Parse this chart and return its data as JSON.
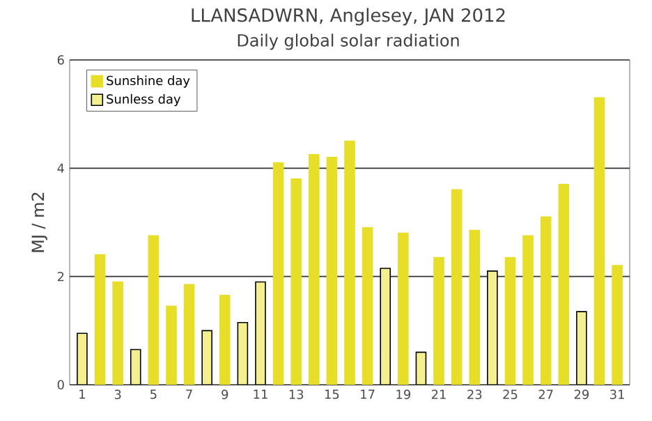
{
  "chart_data": {
    "type": "bar",
    "title": "LLANSADWRN, Anglesey, JAN 2012",
    "subtitle": "Daily global solar radiation",
    "ylabel": "MJ / m2",
    "categories": [
      "1",
      null,
      "3",
      null,
      "5",
      null,
      "7",
      null,
      "9",
      null,
      "11",
      null,
      "13",
      null,
      "15",
      null,
      "17",
      null,
      "19",
      null,
      "21",
      null,
      "23",
      null,
      "25",
      null,
      "27",
      null,
      "29",
      null,
      "31"
    ],
    "series": [
      {
        "name": "Sunshine day",
        "color": "#e6de28",
        "values": [
          null,
          2.4,
          1.9,
          null,
          2.75,
          1.45,
          1.85,
          null,
          1.65,
          null,
          null,
          4.1,
          3.8,
          4.25,
          4.2,
          4.5,
          2.9,
          null,
          2.8,
          null,
          2.35,
          3.6,
          2.85,
          null,
          2.35,
          2.75,
          3.1,
          3.7,
          null,
          5.3,
          2.2
        ]
      },
      {
        "name": "Sunless day",
        "color": "#f4f090",
        "values": [
          0.95,
          null,
          null,
          0.65,
          null,
          null,
          null,
          1.0,
          null,
          1.15,
          1.9,
          null,
          null,
          null,
          null,
          null,
          null,
          2.15,
          null,
          0.6,
          null,
          null,
          null,
          2.1,
          null,
          null,
          null,
          null,
          1.35,
          null,
          null
        ]
      }
    ],
    "stacked": true,
    "ylim": [
      0,
      6
    ],
    "yticks": [
      0,
      2,
      4,
      6
    ],
    "grid": "y",
    "legend": "top left"
  }
}
